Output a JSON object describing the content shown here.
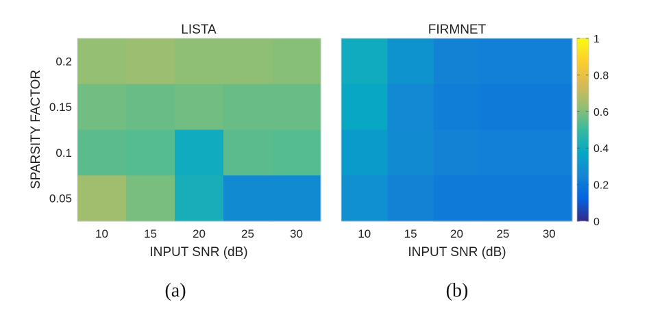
{
  "chart_data": [
    {
      "type": "heatmap",
      "title": "LISTA",
      "subfigure_label": "(a)",
      "xlabel": "INPUT SNR (dB)",
      "ylabel": "SPARSITY FACTOR",
      "x": [
        "10",
        "15",
        "20",
        "25",
        "30"
      ],
      "y": [
        "0.2",
        "0.15",
        "0.1",
        "0.05"
      ],
      "values": [
        [
          0.63,
          0.64,
          0.62,
          0.62,
          0.61
        ],
        [
          0.58,
          0.57,
          0.58,
          0.57,
          0.57
        ],
        [
          0.55,
          0.54,
          0.4,
          0.55,
          0.54
        ],
        [
          0.65,
          0.59,
          0.42,
          0.27,
          0.27
        ]
      ],
      "clim": [
        0,
        1
      ]
    },
    {
      "type": "heatmap",
      "title": "FIRMNET",
      "subfigure_label": "(b)",
      "xlabel": "INPUT SNR (dB)",
      "ylabel": "",
      "x": [
        "10",
        "15",
        "20",
        "25",
        "30"
      ],
      "y": [
        "0.2",
        "0.15",
        "0.1",
        "0.05"
      ],
      "values": [
        [
          0.4,
          0.3,
          0.24,
          0.23,
          0.23
        ],
        [
          0.38,
          0.26,
          0.22,
          0.21,
          0.21
        ],
        [
          0.33,
          0.27,
          0.24,
          0.23,
          0.23
        ],
        [
          0.29,
          0.24,
          0.21,
          0.21,
          0.21
        ]
      ],
      "clim": [
        0,
        1
      ],
      "colorbar": {
        "ticks": [
          "0",
          "0.2",
          "0.4",
          "0.6",
          "0.8",
          "1"
        ],
        "tick_values": [
          0,
          0.2,
          0.4,
          0.6,
          0.8,
          1
        ]
      }
    }
  ]
}
